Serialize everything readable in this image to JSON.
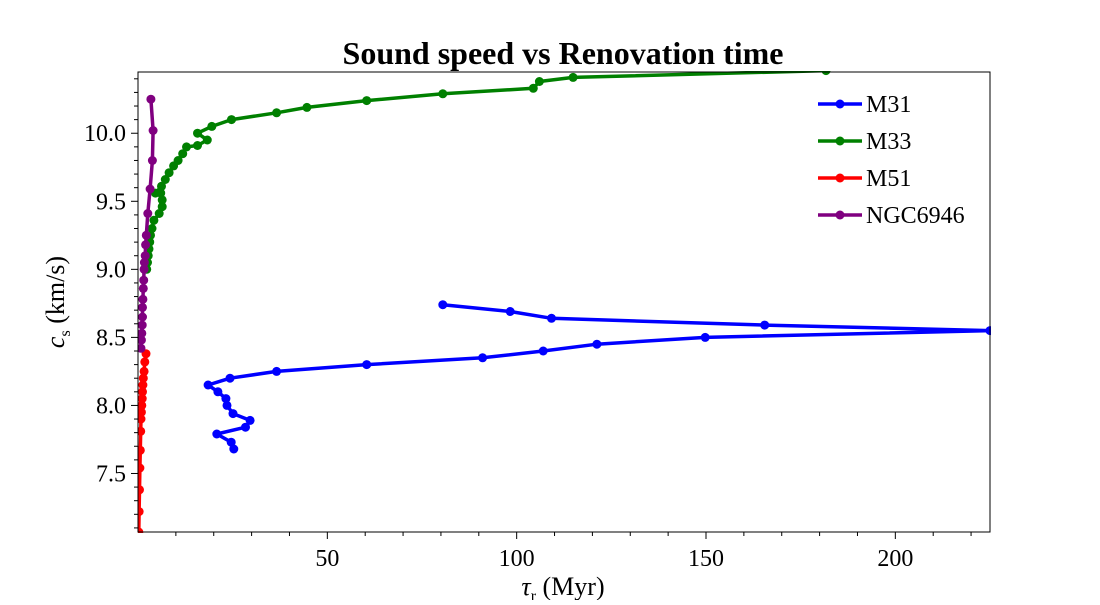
{
  "chart_data": {
    "type": "line",
    "title": "Sound speed vs Renovation time",
    "xlabel": "τ",
    "xlabel_sub": "r",
    "xlabel_unit": " (Myr)",
    "ylabel": "c",
    "ylabel_sub": "s",
    "ylabel_unit": " (km/s)",
    "xlim": [
      0,
      225
    ],
    "ylim": [
      7.07,
      10.45
    ],
    "xticks": [
      50,
      100,
      150,
      200
    ],
    "xtick_labels": [
      "50",
      "100",
      "150",
      "200"
    ],
    "yticks": [
      7.5,
      8.0,
      8.5,
      9.0,
      9.5,
      10.0
    ],
    "ytick_labels": [
      "7.5",
      "8.0",
      "8.5",
      "9.0",
      "9.5",
      "10.0"
    ],
    "legend_position": "upper-right",
    "series": [
      {
        "name": "M31",
        "color": "#0000ff",
        "x": [
          25.3,
          24.6,
          20.8,
          28.4,
          29.6,
          25.1,
          23.5,
          23.2,
          21.1,
          18.5,
          24.3,
          36.6,
          60.4,
          91.0,
          107.0,
          121.2,
          149.8,
          225.0,
          165.5,
          109.2,
          98.3,
          80.5
        ],
        "y": [
          7.68,
          7.73,
          7.79,
          7.84,
          7.89,
          7.94,
          8.0,
          8.05,
          8.1,
          8.15,
          8.2,
          8.25,
          8.3,
          8.35,
          8.4,
          8.45,
          8.5,
          8.55,
          8.59,
          8.64,
          8.69,
          8.74
        ]
      },
      {
        "name": "M33",
        "color": "#008000",
        "x": [
          2.3,
          2.5,
          2.7,
          2.9,
          3.1,
          3.3,
          3.7,
          4.2,
          5.6,
          6.4,
          6.4,
          6.0,
          4.6,
          6.2,
          7.2,
          8.2,
          9.4,
          10.6,
          11.8,
          12.8,
          15.7,
          18.3,
          15.7,
          19.5,
          24.7,
          36.6,
          44.6,
          60.4,
          80.5,
          104.4,
          106.0,
          114.9,
          181.7
        ],
        "y": [
          9.0,
          9.05,
          9.1,
          9.15,
          9.2,
          9.25,
          9.3,
          9.36,
          9.41,
          9.46,
          9.51,
          9.56,
          9.56,
          9.61,
          9.66,
          9.71,
          9.76,
          9.8,
          9.85,
          9.9,
          9.91,
          9.95,
          10.0,
          10.05,
          10.1,
          10.15,
          10.19,
          10.24,
          10.29,
          10.33,
          10.38,
          10.41,
          10.46
        ]
      },
      {
        "name": "M51",
        "color": "#ff0000",
        "x": [
          0.2,
          0.3,
          0.4,
          0.5,
          0.6,
          0.7,
          0.8,
          0.9,
          1.0,
          1.1,
          1.2,
          1.3,
          1.4,
          1.6,
          1.8,
          2.1
        ],
        "y": [
          7.07,
          7.22,
          7.38,
          7.54,
          7.67,
          7.81,
          7.9,
          7.95,
          8.0,
          8.05,
          8.1,
          8.15,
          8.2,
          8.25,
          8.32,
          8.38
        ]
      },
      {
        "name": "NGC6946",
        "color": "#800080",
        "x": [
          0.8,
          0.9,
          1.0,
          1.1,
          1.2,
          1.2,
          1.3,
          1.4,
          1.5,
          1.6,
          1.7,
          1.9,
          2.0,
          2.2,
          2.6,
          3.2,
          3.8,
          4.0,
          3.4
        ],
        "y": [
          8.42,
          8.48,
          8.53,
          8.59,
          8.65,
          8.72,
          8.78,
          8.86,
          8.92,
          9.0,
          9.05,
          9.1,
          9.18,
          9.25,
          9.41,
          9.59,
          9.8,
          10.02,
          10.25
        ]
      }
    ]
  }
}
